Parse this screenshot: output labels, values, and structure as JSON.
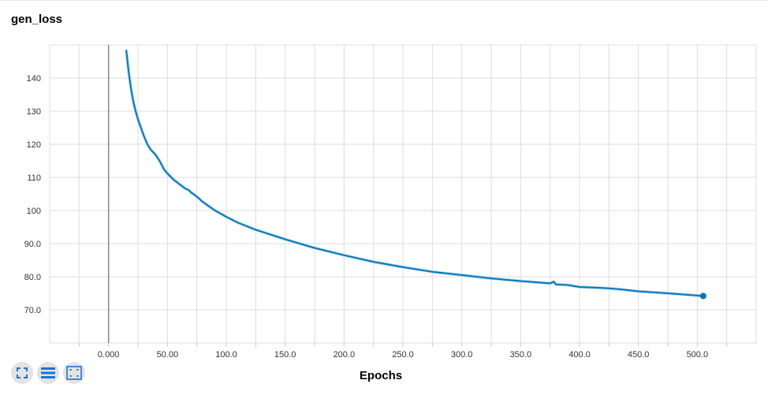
{
  "title": "gen_loss",
  "toolbar": {
    "icons": [
      "expand-icon",
      "data-selection-icon",
      "fit-domain-icon"
    ],
    "icon_color": "#1976d2"
  },
  "chart_data": {
    "type": "line",
    "title": "gen_loss",
    "xlabel": "Epochs",
    "ylabel": "",
    "xlim": [
      -50,
      550
    ],
    "ylim": [
      60,
      150
    ],
    "x_ticks": [
      "0.000",
      "50.00",
      "100.0",
      "150.0",
      "200.0",
      "250.0",
      "300.0",
      "350.0",
      "400.0",
      "450.0",
      "500.0"
    ],
    "y_ticks": [
      "70.0",
      "80.0",
      "90.0",
      "100",
      "110",
      "120",
      "130",
      "140"
    ],
    "grid": true,
    "line_color": "#0277bd",
    "series": [
      {
        "x": [
          15,
          17,
          19,
          21,
          23,
          25,
          27,
          30,
          33,
          36,
          40,
          43,
          47,
          50,
          55,
          60,
          65,
          68,
          70,
          75,
          80,
          90,
          100,
          110,
          125,
          150,
          175,
          200,
          225,
          250,
          275,
          300,
          325,
          350,
          375,
          378,
          380,
          390,
          400,
          415,
          425,
          435,
          450,
          475,
          505
        ],
        "y": [
          148.5,
          142,
          137,
          133,
          130,
          127.5,
          125.5,
          122.5,
          120,
          118.3,
          116.8,
          115.2,
          112.5,
          111.2,
          109.4,
          108,
          106.7,
          106.2,
          105.5,
          104.2,
          102.6,
          100.1,
          98.1,
          96.3,
          94.2,
          91.3,
          88.7,
          86.5,
          84.5,
          82.9,
          81.5,
          80.5,
          79.5,
          78.7,
          78.0,
          78.5,
          77.7,
          77.5,
          76.9,
          76.7,
          76.5,
          76.2,
          75.6,
          75.0,
          74.2
        ]
      }
    ],
    "last_point": {
      "x": 505,
      "y": 74.2
    }
  }
}
